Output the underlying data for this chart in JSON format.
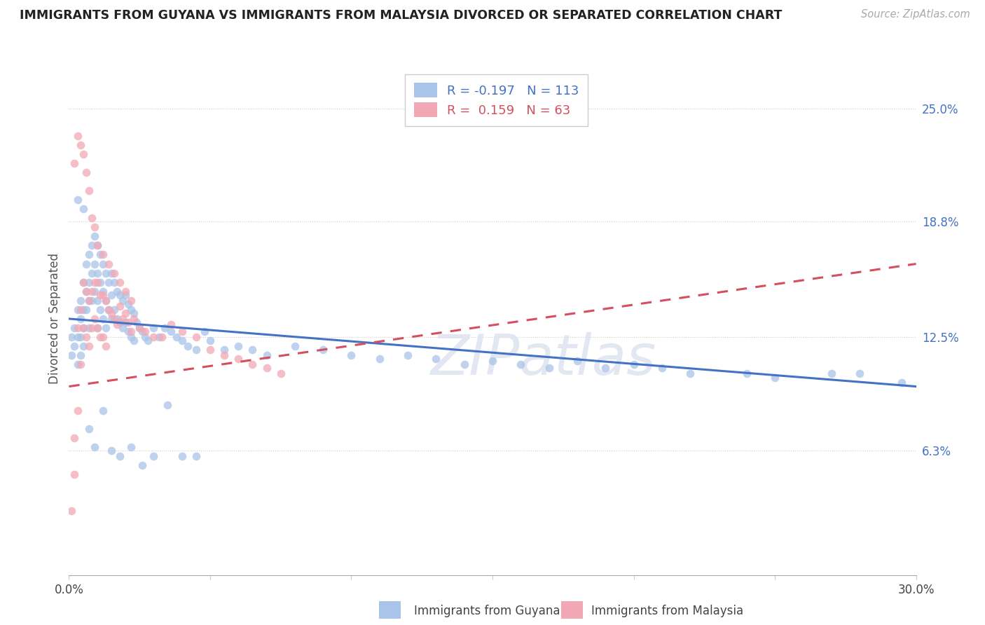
{
  "title": "IMMIGRANTS FROM GUYANA VS IMMIGRANTS FROM MALAYSIA DIVORCED OR SEPARATED CORRELATION CHART",
  "source": "Source: ZipAtlas.com",
  "ylabel": "Divorced or Separated",
  "right_yticks": [
    "25.0%",
    "18.8%",
    "12.5%",
    "6.3%"
  ],
  "right_ytick_values": [
    0.25,
    0.188,
    0.125,
    0.063
  ],
  "watermark": "ZIPatlas",
  "guyana_color": "#a8c4e8",
  "malaysia_color": "#f2a8b4",
  "guyana_line_color": "#4472c4",
  "malaysia_line_color": "#d45060",
  "legend_R_guyana": "-0.197",
  "legend_N_guyana": "113",
  "legend_R_malaysia": "0.159",
  "legend_N_malaysia": "63",
  "xmin": 0.0,
  "xmax": 0.3,
  "ymin": -0.005,
  "ymax": 0.275,
  "guyana_line_x0": 0.0,
  "guyana_line_y0": 0.135,
  "guyana_line_x1": 0.3,
  "guyana_line_y1": 0.098,
  "malaysia_line_x0": 0.0,
  "malaysia_line_y0": 0.098,
  "malaysia_line_x1": 0.3,
  "malaysia_line_y1": 0.165,
  "guyana_scatter_x": [
    0.001,
    0.001,
    0.002,
    0.002,
    0.003,
    0.003,
    0.003,
    0.004,
    0.004,
    0.004,
    0.004,
    0.005,
    0.005,
    0.005,
    0.005,
    0.006,
    0.006,
    0.006,
    0.007,
    0.007,
    0.007,
    0.007,
    0.008,
    0.008,
    0.008,
    0.009,
    0.009,
    0.009,
    0.01,
    0.01,
    0.01,
    0.01,
    0.011,
    0.011,
    0.011,
    0.012,
    0.012,
    0.012,
    0.013,
    0.013,
    0.013,
    0.014,
    0.014,
    0.015,
    0.015,
    0.015,
    0.016,
    0.016,
    0.017,
    0.017,
    0.018,
    0.018,
    0.019,
    0.019,
    0.02,
    0.02,
    0.021,
    0.021,
    0.022,
    0.022,
    0.023,
    0.023,
    0.024,
    0.025,
    0.026,
    0.027,
    0.028,
    0.03,
    0.032,
    0.034,
    0.036,
    0.038,
    0.04,
    0.042,
    0.045,
    0.048,
    0.05,
    0.055,
    0.06,
    0.065,
    0.07,
    0.08,
    0.09,
    0.1,
    0.11,
    0.12,
    0.13,
    0.14,
    0.15,
    0.16,
    0.17,
    0.18,
    0.19,
    0.2,
    0.21,
    0.22,
    0.24,
    0.25,
    0.27,
    0.28,
    0.295,
    0.003,
    0.005,
    0.007,
    0.009,
    0.012,
    0.015,
    0.018,
    0.022,
    0.026,
    0.03,
    0.035,
    0.04,
    0.045
  ],
  "guyana_scatter_y": [
    0.125,
    0.115,
    0.13,
    0.12,
    0.125,
    0.14,
    0.11,
    0.135,
    0.145,
    0.125,
    0.115,
    0.155,
    0.14,
    0.13,
    0.12,
    0.165,
    0.15,
    0.14,
    0.17,
    0.155,
    0.145,
    0.13,
    0.175,
    0.16,
    0.145,
    0.18,
    0.165,
    0.15,
    0.175,
    0.16,
    0.145,
    0.13,
    0.17,
    0.155,
    0.14,
    0.165,
    0.15,
    0.135,
    0.16,
    0.145,
    0.13,
    0.155,
    0.14,
    0.16,
    0.148,
    0.135,
    0.155,
    0.14,
    0.15,
    0.135,
    0.148,
    0.133,
    0.145,
    0.13,
    0.148,
    0.133,
    0.143,
    0.128,
    0.14,
    0.125,
    0.138,
    0.123,
    0.133,
    0.13,
    0.128,
    0.125,
    0.123,
    0.13,
    0.125,
    0.13,
    0.128,
    0.125,
    0.123,
    0.12,
    0.118,
    0.128,
    0.123,
    0.118,
    0.12,
    0.118,
    0.115,
    0.12,
    0.118,
    0.115,
    0.113,
    0.115,
    0.113,
    0.11,
    0.112,
    0.11,
    0.108,
    0.112,
    0.108,
    0.11,
    0.108,
    0.105,
    0.105,
    0.103,
    0.105,
    0.105,
    0.1,
    0.2,
    0.195,
    0.075,
    0.065,
    0.085,
    0.063,
    0.06,
    0.065,
    0.055,
    0.06,
    0.088,
    0.06,
    0.06
  ],
  "malaysia_scatter_x": [
    0.001,
    0.002,
    0.002,
    0.003,
    0.003,
    0.004,
    0.004,
    0.005,
    0.005,
    0.006,
    0.006,
    0.007,
    0.007,
    0.008,
    0.008,
    0.009,
    0.009,
    0.01,
    0.01,
    0.011,
    0.011,
    0.012,
    0.012,
    0.013,
    0.013,
    0.014,
    0.015,
    0.016,
    0.017,
    0.018,
    0.019,
    0.02,
    0.021,
    0.022,
    0.023,
    0.025,
    0.027,
    0.03,
    0.033,
    0.036,
    0.04,
    0.045,
    0.05,
    0.055,
    0.06,
    0.065,
    0.07,
    0.075,
    0.002,
    0.003,
    0.004,
    0.005,
    0.006,
    0.007,
    0.008,
    0.009,
    0.01,
    0.012,
    0.014,
    0.016,
    0.018,
    0.02,
    0.022
  ],
  "malaysia_scatter_y": [
    0.03,
    0.07,
    0.05,
    0.13,
    0.085,
    0.14,
    0.11,
    0.155,
    0.13,
    0.15,
    0.125,
    0.145,
    0.12,
    0.15,
    0.13,
    0.155,
    0.135,
    0.155,
    0.13,
    0.148,
    0.125,
    0.148,
    0.125,
    0.145,
    0.12,
    0.14,
    0.138,
    0.135,
    0.132,
    0.142,
    0.135,
    0.138,
    0.133,
    0.128,
    0.135,
    0.13,
    0.128,
    0.125,
    0.125,
    0.132,
    0.128,
    0.125,
    0.118,
    0.115,
    0.113,
    0.11,
    0.108,
    0.105,
    0.22,
    0.235,
    0.23,
    0.225,
    0.215,
    0.205,
    0.19,
    0.185,
    0.175,
    0.17,
    0.165,
    0.16,
    0.155,
    0.15,
    0.145
  ]
}
